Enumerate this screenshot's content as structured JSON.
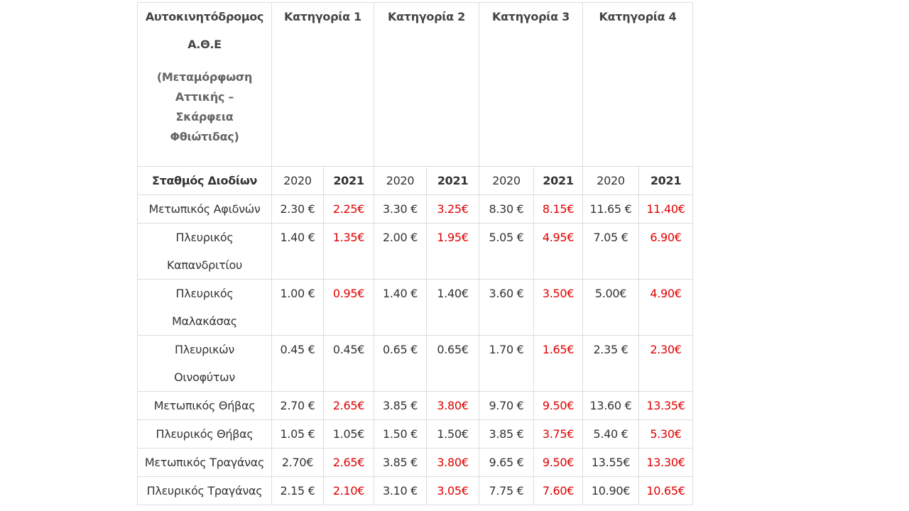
{
  "header": {
    "title_lines": [
      "Αυτοκινητόδρομος",
      "Α.Θ.Ε"
    ],
    "subtitle": "(Μεταμόρφωση Αττικής – Σκάρφεια Φθιώτιδας)",
    "categories": [
      "Κατηγορία  1",
      "Κατηγορία 2",
      "Κατηγορία 3",
      "Κατηγορία 4"
    ]
  },
  "subheader": [
    "Σταθμός Διοδίων",
    "2020",
    "2021",
    "2020",
    "2021",
    "2020",
    "2021",
    "2020",
    "2021"
  ],
  "colors": {
    "normal": "#333333",
    "changed": "#e00000"
  },
  "rows": [
    {
      "name": [
        "Μετωπικός Αφιδνών"
      ],
      "cells": [
        {
          "text": "2.30 €",
          "color": "#333333"
        },
        {
          "text": "2.25€",
          "color": "#e00000"
        },
        {
          "text": "3.30 €",
          "color": "#333333"
        },
        {
          "text": "3.25€",
          "color": "#e00000"
        },
        {
          "text": "8.30 €",
          "color": "#333333"
        },
        {
          "text": "8.15€",
          "color": "#e00000"
        },
        {
          "text": "11.65 €",
          "color": "#333333"
        },
        {
          "text": "11.40€",
          "color": "#e00000"
        }
      ]
    },
    {
      "name": [
        "Πλευρικός",
        "Καπανδριτίου"
      ],
      "cells": [
        {
          "text": "1.40 €",
          "color": "#333333"
        },
        {
          "text": "1.35€",
          "color": "#e00000"
        },
        {
          "text": "2.00 €",
          "color": "#333333"
        },
        {
          "text": "1.95€",
          "color": "#e00000"
        },
        {
          "text": "5.05 €",
          "color": "#333333"
        },
        {
          "text": "4.95€",
          "color": "#e00000"
        },
        {
          "text": "7.05 €",
          "color": "#333333"
        },
        {
          "text": "6.90€",
          "color": "#e00000"
        }
      ]
    },
    {
      "name": [
        "Πλευρικός",
        "Μαλακάσας"
      ],
      "cells": [
        {
          "text": "1.00 €",
          "color": "#333333"
        },
        {
          "text": "0.95€",
          "color": "#e00000"
        },
        {
          "text": "1.40 €",
          "color": "#333333"
        },
        {
          "text": "1.40€",
          "color": "#333333"
        },
        {
          "text": "3.60 €",
          "color": "#333333"
        },
        {
          "text": "3.50€",
          "color": "#e00000"
        },
        {
          "text": "5.00€",
          "color": "#333333"
        },
        {
          "text": "4.90€",
          "color": "#e00000"
        }
      ]
    },
    {
      "name": [
        "Πλευρικών",
        "Οινοφύτων"
      ],
      "cells": [
        {
          "text": "0.45 €",
          "color": "#333333"
        },
        {
          "text": "0.45€",
          "color": "#333333"
        },
        {
          "text": "0.65 €",
          "color": "#333333"
        },
        {
          "text": "0.65€",
          "color": "#333333"
        },
        {
          "text": "1.70 €",
          "color": "#333333"
        },
        {
          "text": "1.65€",
          "color": "#e00000"
        },
        {
          "text": "2.35 €",
          "color": "#333333"
        },
        {
          "text": "2.30€",
          "color": "#e00000"
        }
      ]
    },
    {
      "name": [
        "Μετωπικός Θήβας"
      ],
      "cells": [
        {
          "text": "2.70 €",
          "color": "#333333"
        },
        {
          "text": "2.65€",
          "color": "#e00000"
        },
        {
          "text": "3.85 €",
          "color": "#333333"
        },
        {
          "text": "3.80€",
          "color": "#e00000"
        },
        {
          "text": "9.70 €",
          "color": "#333333"
        },
        {
          "text": "9.50€",
          "color": "#e00000"
        },
        {
          "text": "13.60 €",
          "color": "#333333"
        },
        {
          "text": "13.35€",
          "color": "#e00000"
        }
      ]
    },
    {
      "name": [
        "Πλευρικός Θήβας"
      ],
      "cells": [
        {
          "text": "1.05 €",
          "color": "#333333"
        },
        {
          "text": "1.05€",
          "color": "#333333"
        },
        {
          "text": "1.50 €",
          "color": "#333333"
        },
        {
          "text": "1.50€",
          "color": "#333333"
        },
        {
          "text": "3.85 €",
          "color": "#333333"
        },
        {
          "text": "3.75€",
          "color": "#e00000"
        },
        {
          "text": "5.40 €",
          "color": "#333333"
        },
        {
          "text": "5.30€",
          "color": "#e00000"
        }
      ]
    },
    {
      "name": [
        "Μετωπικός Τραγάνας"
      ],
      "cells": [
        {
          "text": "2.70€",
          "color": "#333333"
        },
        {
          "text": "2.65€",
          "color": "#e00000"
        },
        {
          "text": "3.85 €",
          "color": "#333333"
        },
        {
          "text": "3.80€",
          "color": "#e00000"
        },
        {
          "text": "9.65 €",
          "color": "#333333"
        },
        {
          "text": "9.50€",
          "color": "#e00000"
        },
        {
          "text": "13.55€",
          "color": "#333333"
        },
        {
          "text": "13.30€",
          "color": "#e00000"
        }
      ]
    },
    {
      "name": [
        "Πλευρικός Τραγάνας"
      ],
      "cells": [
        {
          "text": "2.15 €",
          "color": "#333333"
        },
        {
          "text": "2.10€",
          "color": "#e00000"
        },
        {
          "text": "3.10 €",
          "color": "#333333"
        },
        {
          "text": "3.05€",
          "color": "#e00000"
        },
        {
          "text": "7.75 €",
          "color": "#333333"
        },
        {
          "text": "7.60€",
          "color": "#e00000"
        },
        {
          "text": "10.90€",
          "color": "#333333"
        },
        {
          "text": "10.65€",
          "color": "#e00000"
        }
      ]
    }
  ]
}
